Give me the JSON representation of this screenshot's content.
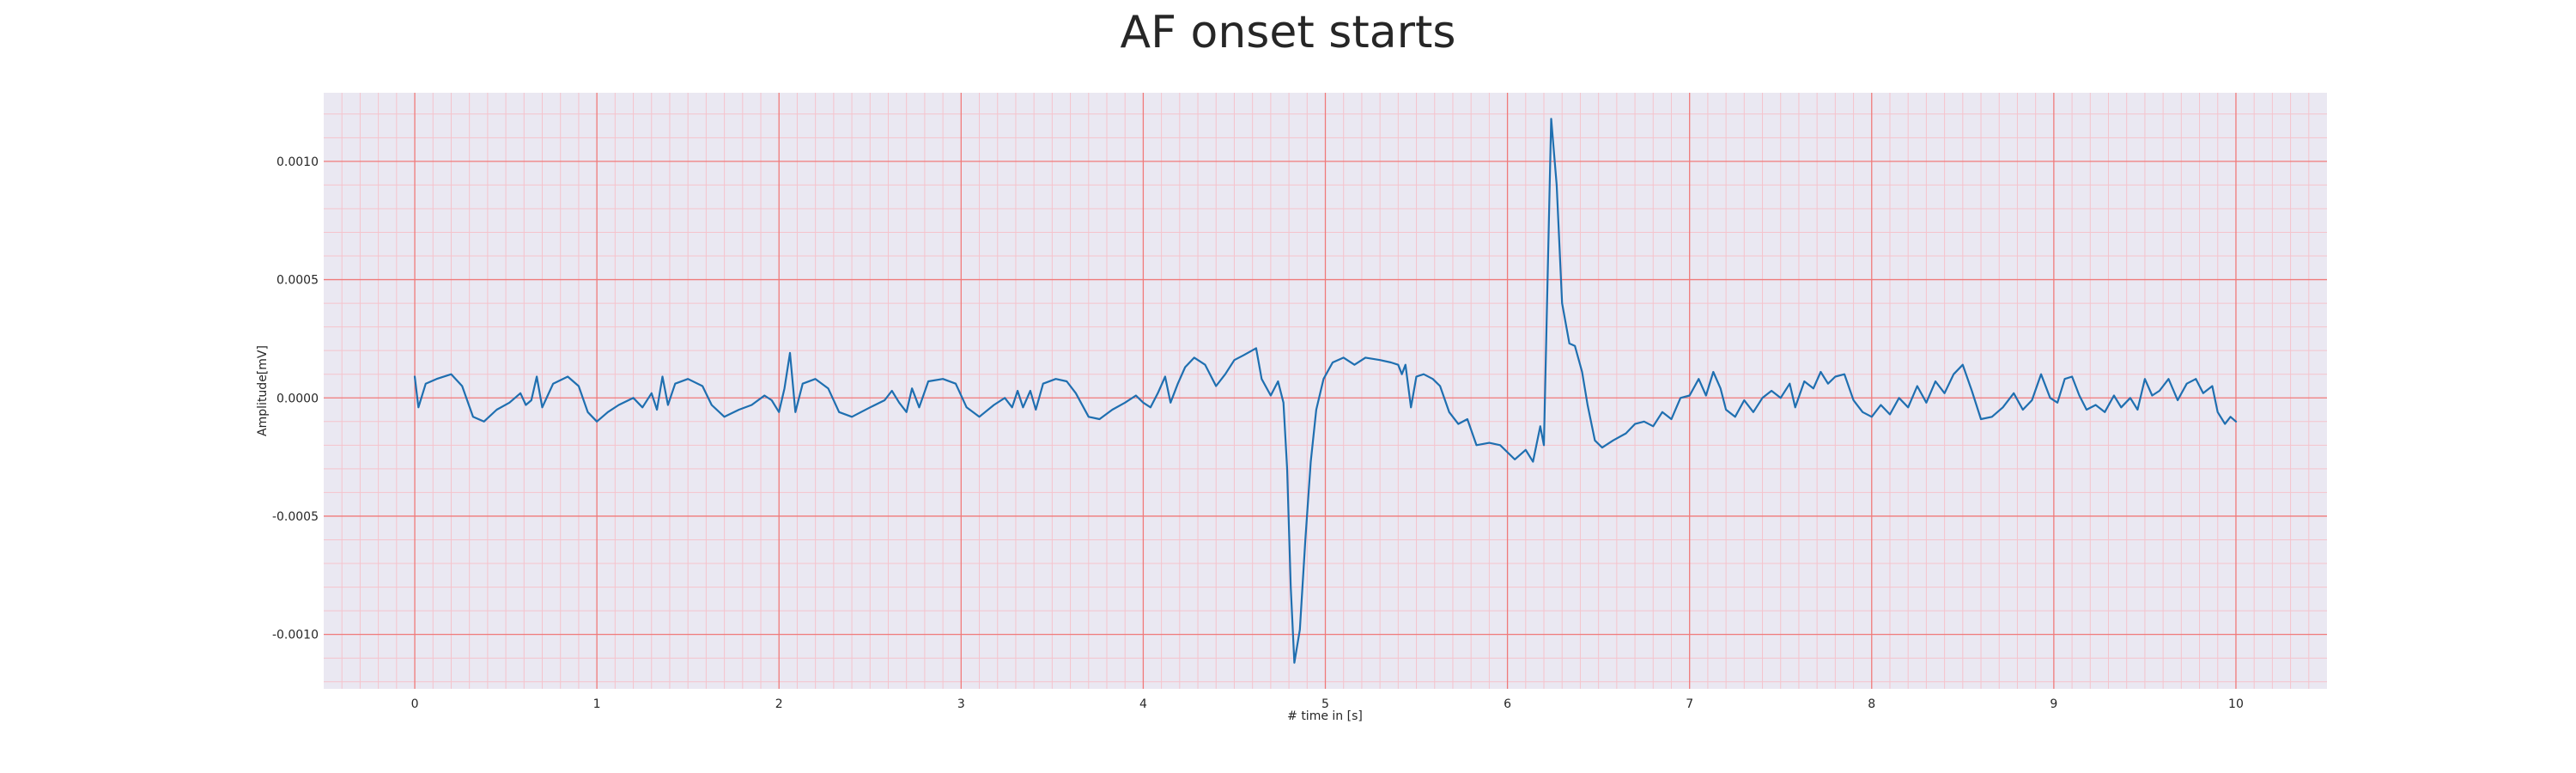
{
  "chart_data": {
    "type": "line",
    "title": "AF onset starts",
    "xlabel": "# time in [s]",
    "ylabel": "Amplitude[mV]",
    "xlim": [
      -0.5,
      10.5
    ],
    "ylim": [
      -0.00123,
      0.00129
    ],
    "xticks": [
      0,
      1,
      2,
      3,
      4,
      5,
      6,
      7,
      8,
      9,
      10
    ],
    "xtick_labels": [
      "0",
      "1",
      "2",
      "3",
      "4",
      "5",
      "6",
      "7",
      "8",
      "9",
      "10"
    ],
    "yticks": [
      -0.001,
      -0.0005,
      0.0,
      0.0005,
      0.001
    ],
    "ytick_labels": [
      "-0.0010",
      "-0.0005",
      "0.0000",
      "0.0005",
      "0.0010"
    ],
    "grid": true,
    "minor_grid": true,
    "colors": {
      "line": "#1f6fb0",
      "plot_background": "#eae8f2",
      "major_grid": "#f07a7a",
      "minor_grid": "#f5c3cc"
    },
    "series": [
      {
        "points": [
          [
            0.0,
            9e-05
          ],
          [
            0.02,
            -4e-05
          ],
          [
            0.06,
            6e-05
          ],
          [
            0.12,
            8e-05
          ],
          [
            0.2,
            0.0001
          ],
          [
            0.26,
            5e-05
          ],
          [
            0.32,
            -8e-05
          ],
          [
            0.38,
            -0.0001
          ],
          [
            0.45,
            -5e-05
          ],
          [
            0.52,
            -2e-05
          ],
          [
            0.58,
            2e-05
          ],
          [
            0.61,
            -3e-05
          ],
          [
            0.64,
            -1e-05
          ],
          [
            0.67,
            9e-05
          ],
          [
            0.7,
            -4e-05
          ],
          [
            0.76,
            6e-05
          ],
          [
            0.84,
            9e-05
          ],
          [
            0.9,
            5e-05
          ],
          [
            0.95,
            -6e-05
          ],
          [
            1.0,
            -0.0001
          ],
          [
            1.06,
            -6e-05
          ],
          [
            1.12,
            -3e-05
          ],
          [
            1.2,
            0.0
          ],
          [
            1.25,
            -4e-05
          ],
          [
            1.3,
            2e-05
          ],
          [
            1.33,
            -5e-05
          ],
          [
            1.36,
            9e-05
          ],
          [
            1.39,
            -3e-05
          ],
          [
            1.43,
            6e-05
          ],
          [
            1.5,
            8e-05
          ],
          [
            1.58,
            5e-05
          ],
          [
            1.63,
            -3e-05
          ],
          [
            1.7,
            -8e-05
          ],
          [
            1.78,
            -5e-05
          ],
          [
            1.85,
            -3e-05
          ],
          [
            1.92,
            1e-05
          ],
          [
            1.96,
            -1e-05
          ],
          [
            2.0,
            -6e-05
          ],
          [
            2.03,
            4e-05
          ],
          [
            2.06,
            0.00019
          ],
          [
            2.09,
            -6e-05
          ],
          [
            2.13,
            6e-05
          ],
          [
            2.2,
            8e-05
          ],
          [
            2.27,
            4e-05
          ],
          [
            2.33,
            -6e-05
          ],
          [
            2.4,
            -8e-05
          ],
          [
            2.5,
            -4e-05
          ],
          [
            2.58,
            -1e-05
          ],
          [
            2.62,
            3e-05
          ],
          [
            2.66,
            -2e-05
          ],
          [
            2.7,
            -6e-05
          ],
          [
            2.73,
            4e-05
          ],
          [
            2.77,
            -4e-05
          ],
          [
            2.82,
            7e-05
          ],
          [
            2.9,
            8e-05
          ],
          [
            2.97,
            6e-05
          ],
          [
            3.03,
            -4e-05
          ],
          [
            3.1,
            -8e-05
          ],
          [
            3.18,
            -3e-05
          ],
          [
            3.24,
            0.0
          ],
          [
            3.28,
            -4e-05
          ],
          [
            3.31,
            3e-05
          ],
          [
            3.34,
            -4e-05
          ],
          [
            3.38,
            3e-05
          ],
          [
            3.41,
            -5e-05
          ],
          [
            3.45,
            6e-05
          ],
          [
            3.52,
            8e-05
          ],
          [
            3.58,
            7e-05
          ],
          [
            3.63,
            2e-05
          ],
          [
            3.7,
            -8e-05
          ],
          [
            3.76,
            -9e-05
          ],
          [
            3.83,
            -5e-05
          ],
          [
            3.9,
            -2e-05
          ],
          [
            3.96,
            1e-05
          ],
          [
            4.0,
            -2e-05
          ],
          [
            4.04,
            -4e-05
          ],
          [
            4.08,
            2e-05
          ],
          [
            4.12,
            9e-05
          ],
          [
            4.15,
            -2e-05
          ],
          [
            4.19,
            6e-05
          ],
          [
            4.23,
            0.00013
          ],
          [
            4.28,
            0.00017
          ],
          [
            4.34,
            0.00014
          ],
          [
            4.4,
            5e-05
          ],
          [
            4.45,
            0.0001
          ],
          [
            4.5,
            0.00016
          ],
          [
            4.55,
            0.00018
          ],
          [
            4.62,
            0.00021
          ],
          [
            4.65,
            8e-05
          ],
          [
            4.7,
            1e-05
          ],
          [
            4.74,
            7e-05
          ],
          [
            4.77,
            -2e-05
          ],
          [
            4.79,
            -0.0003
          ],
          [
            4.81,
            -0.0008
          ],
          [
            4.83,
            -0.00112
          ],
          [
            4.86,
            -0.00098
          ],
          [
            4.89,
            -0.0006
          ],
          [
            4.92,
            -0.00027
          ],
          [
            4.95,
            -5e-05
          ],
          [
            4.99,
            8e-05
          ],
          [
            5.04,
            0.00015
          ],
          [
            5.1,
            0.00017
          ],
          [
            5.16,
            0.00014
          ],
          [
            5.22,
            0.00017
          ],
          [
            5.3,
            0.00016
          ],
          [
            5.36,
            0.00015
          ],
          [
            5.4,
            0.00014
          ],
          [
            5.42,
            0.0001
          ],
          [
            5.44,
            0.00014
          ],
          [
            5.47,
            -4e-05
          ],
          [
            5.5,
            9e-05
          ],
          [
            5.54,
            0.0001
          ],
          [
            5.59,
            8e-05
          ],
          [
            5.63,
            5e-05
          ],
          [
            5.68,
            -6e-05
          ],
          [
            5.73,
            -0.00011
          ],
          [
            5.78,
            -9e-05
          ],
          [
            5.83,
            -0.0002
          ],
          [
            5.9,
            -0.00019
          ],
          [
            5.96,
            -0.0002
          ],
          [
            6.04,
            -0.00026
          ],
          [
            6.1,
            -0.00022
          ],
          [
            6.14,
            -0.00027
          ],
          [
            6.18,
            -0.00012
          ],
          [
            6.2,
            -0.0002
          ],
          [
            6.22,
            0.0005
          ],
          [
            6.24,
            0.00118
          ],
          [
            6.27,
            0.0009
          ],
          [
            6.3,
            0.0004
          ],
          [
            6.34,
            0.00023
          ],
          [
            6.37,
            0.00022
          ],
          [
            6.41,
            0.00011
          ],
          [
            6.44,
            -3e-05
          ],
          [
            6.48,
            -0.00018
          ],
          [
            6.52,
            -0.00021
          ],
          [
            6.58,
            -0.00018
          ],
          [
            6.65,
            -0.00015
          ],
          [
            6.7,
            -0.00011
          ],
          [
            6.75,
            -0.0001
          ],
          [
            6.8,
            -0.00012
          ],
          [
            6.85,
            -6e-05
          ],
          [
            6.9,
            -9e-05
          ],
          [
            6.95,
            0.0
          ],
          [
            7.0,
            1e-05
          ],
          [
            7.05,
            8e-05
          ],
          [
            7.09,
            1e-05
          ],
          [
            7.13,
            0.00011
          ],
          [
            7.17,
            4e-05
          ],
          [
            7.2,
            -5e-05
          ],
          [
            7.25,
            -8e-05
          ],
          [
            7.3,
            -1e-05
          ],
          [
            7.35,
            -6e-05
          ],
          [
            7.4,
            0.0
          ],
          [
            7.45,
            3e-05
          ],
          [
            7.5,
            0.0
          ],
          [
            7.55,
            6e-05
          ],
          [
            7.58,
            -4e-05
          ],
          [
            7.63,
            7e-05
          ],
          [
            7.68,
            4e-05
          ],
          [
            7.72,
            0.00011
          ],
          [
            7.76,
            6e-05
          ],
          [
            7.8,
            9e-05
          ],
          [
            7.85,
            0.0001
          ],
          [
            7.9,
            -1e-05
          ],
          [
            7.95,
            -6e-05
          ],
          [
            8.0,
            -8e-05
          ],
          [
            8.05,
            -3e-05
          ],
          [
            8.1,
            -7e-05
          ],
          [
            8.15,
            0.0
          ],
          [
            8.2,
            -4e-05
          ],
          [
            8.25,
            5e-05
          ],
          [
            8.3,
            -2e-05
          ],
          [
            8.35,
            7e-05
          ],
          [
            8.4,
            2e-05
          ],
          [
            8.45,
            0.0001
          ],
          [
            8.5,
            0.00014
          ],
          [
            8.55,
            3e-05
          ],
          [
            8.6,
            -9e-05
          ],
          [
            8.66,
            -8e-05
          ],
          [
            8.72,
            -4e-05
          ],
          [
            8.78,
            2e-05
          ],
          [
            8.83,
            -5e-05
          ],
          [
            8.88,
            -1e-05
          ],
          [
            8.93,
            0.0001
          ],
          [
            8.98,
            0.0
          ],
          [
            9.02,
            -2e-05
          ],
          [
            9.06,
            8e-05
          ],
          [
            9.1,
            9e-05
          ],
          [
            9.14,
            1e-05
          ],
          [
            9.18,
            -5e-05
          ],
          [
            9.23,
            -3e-05
          ],
          [
            9.28,
            -6e-05
          ],
          [
            9.33,
            1e-05
          ],
          [
            9.37,
            -4e-05
          ],
          [
            9.42,
            0.0
          ],
          [
            9.46,
            -5e-05
          ],
          [
            9.5,
            8e-05
          ],
          [
            9.54,
            1e-05
          ],
          [
            9.58,
            3e-05
          ],
          [
            9.63,
            8e-05
          ],
          [
            9.68,
            -1e-05
          ],
          [
            9.73,
            6e-05
          ],
          [
            9.78,
            8e-05
          ],
          [
            9.82,
            2e-05
          ],
          [
            9.87,
            5e-05
          ],
          [
            9.9,
            -6e-05
          ],
          [
            9.94,
            -0.00011
          ],
          [
            9.97,
            -8e-05
          ],
          [
            10.0,
            -0.0001
          ]
        ]
      }
    ]
  }
}
